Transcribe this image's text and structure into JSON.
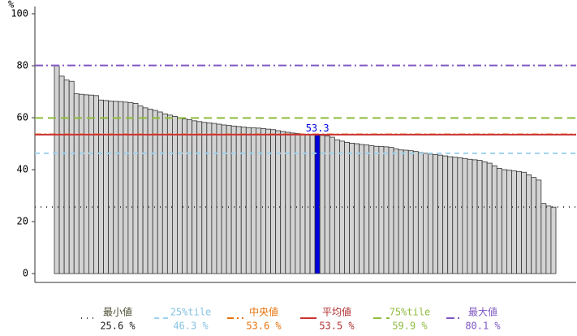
{
  "chart_data": {
    "type": "bar",
    "y_label": "%",
    "values": [
      80,
      76,
      74.5,
      74,
      69.2,
      69,
      68.8,
      68.7,
      68.5,
      66.8,
      66.6,
      66.4,
      66.3,
      66.2,
      66,
      65.8,
      65.5,
      64.5,
      63.8,
      63.3,
      62.8,
      62.2,
      61.5,
      61,
      60.5,
      60,
      59.5,
      59.2,
      58.8,
      58.5,
      58.2,
      58,
      57.8,
      57.5,
      57.2,
      57,
      56.8,
      56.6,
      56.4,
      56.2,
      56.1,
      56,
      55.8,
      55.6,
      55.4,
      55,
      54.7,
      54.4,
      54.1,
      53.9,
      53.7,
      53.5,
      53.4,
      53.3,
      53.2,
      53,
      52.5,
      51.5,
      51,
      50.5,
      50.2,
      50,
      49.7,
      49.5,
      49.2,
      49,
      48.9,
      48.8,
      48.6,
      48,
      47.6,
      47.5,
      47.3,
      47,
      46.6,
      46.3,
      46,
      45.8,
      45.6,
      45.3,
      45,
      44.8,
      44.6,
      44.3,
      44,
      43.8,
      43.6,
      43,
      42.5,
      41.5,
      40.5,
      40,
      39.8,
      39.5,
      39.3,
      39,
      38,
      37,
      36,
      27,
      26,
      25.6
    ],
    "value_labels": [
      null,
      null,
      null,
      null,
      null,
      null,
      null,
      null,
      null,
      null,
      null,
      null,
      null,
      null,
      null,
      null,
      null,
      null,
      null,
      null,
      null,
      null,
      null,
      null,
      null,
      null,
      null,
      null,
      null,
      null,
      null,
      null,
      null,
      null,
      null,
      null,
      null,
      null,
      null,
      null,
      null,
      null,
      null,
      null,
      null,
      null,
      null,
      null,
      null,
      null,
      null,
      null,
      null,
      "53.3",
      null,
      null,
      null,
      null,
      null,
      null,
      null,
      null,
      null,
      null,
      null,
      null,
      null,
      null,
      null,
      null,
      null,
      null,
      null,
      null,
      null,
      null,
      null,
      null,
      null,
      null,
      null,
      null,
      null,
      null,
      null,
      null,
      null,
      null,
      null,
      null,
      null,
      null,
      null,
      null,
      null,
      null,
      null,
      null,
      null,
      null,
      null,
      null
    ],
    "color": "#d3d3d3",
    "highlight_color": "#0000dd",
    "ylim": [
      -3.4,
      102.8
    ],
    "yticks": [
      0,
      20,
      40,
      60,
      80,
      100
    ],
    "reference_lines": [
      {
        "name": "最小値",
        "value": 25.6,
        "label": "25.6 %",
        "color": "#444444",
        "text_color": "#4d4d33",
        "value_color": "#222222",
        "dash": "1 6"
      },
      {
        "name": "25%tile",
        "value": 46.3,
        "label": "46.3 %",
        "color": "#9fd3ee",
        "text_color": "#87c3e3",
        "value_color": "#87c3e3",
        "dash": "6 5"
      },
      {
        "name": "中央値",
        "value": 53.6,
        "label": "53.6 %",
        "color": "#e8730c",
        "text_color": "#e8730c",
        "value_color": "#e8730c",
        "dash": "8 4 2 4"
      },
      {
        "name": "平均値",
        "value": 53.5,
        "label": "53.5 %",
        "color": "#cc3333",
        "text_color": "#b03030",
        "value_color": "#b03030",
        "dash": "none"
      },
      {
        "name": "75%tile",
        "value": 59.9,
        "label": "59.9 %",
        "color": "#8fbc3f",
        "text_color": "#8fbc3f",
        "value_color": "#8fbc3f",
        "dash": "10 6"
      },
      {
        "name": "最大値",
        "value": 80.1,
        "label": "80.1 %",
        "color": "#7e57c2",
        "text_color": "#7e57c2",
        "value_color": "#7e57c2",
        "dash": "10 4 2 4"
      }
    ]
  }
}
